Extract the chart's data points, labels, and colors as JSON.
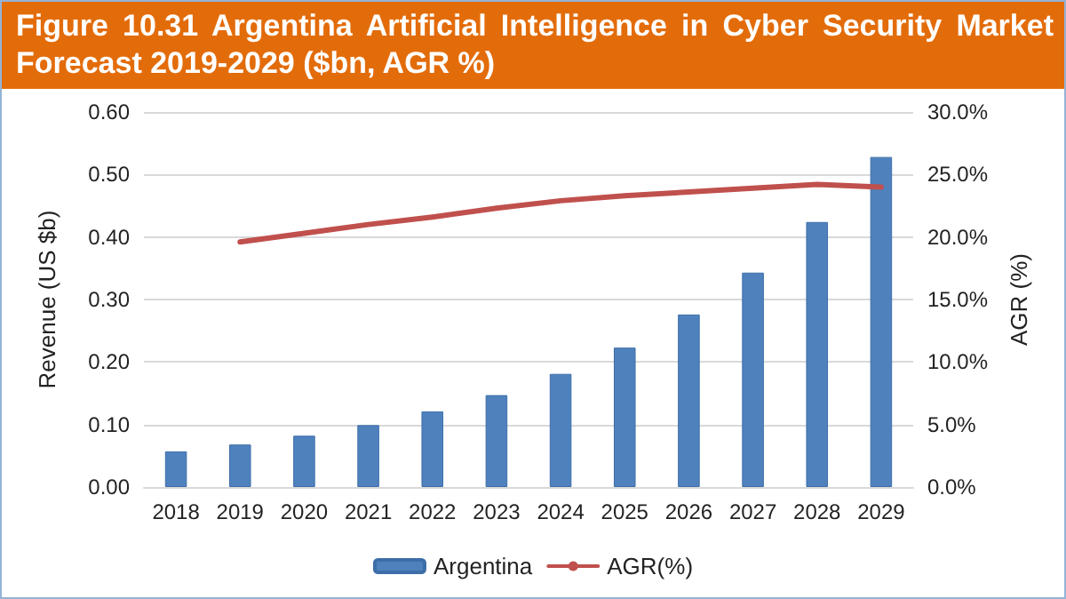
{
  "chart_data": {
    "type": "bar",
    "title": "Figure 10.31 Argentina Artificial Intelligence in Cyber Security Market Forecast 2019-2029 ($bn, AGR %)",
    "categories": [
      "2018",
      "2019",
      "2020",
      "2021",
      "2022",
      "2023",
      "2024",
      "2025",
      "2026",
      "2027",
      "2028",
      "2029"
    ],
    "series": [
      {
        "name": "Argentina",
        "color": "#4f81bd",
        "values": [
          0.057,
          0.068,
          0.082,
          0.099,
          0.121,
          0.147,
          0.181,
          0.223,
          0.276,
          0.343,
          0.424,
          0.528
        ]
      },
      {
        "name": "AGR(%)",
        "type": "line",
        "axis": "y2",
        "color": "#c0504d",
        "values": [
          null,
          19.6,
          20.3,
          21.0,
          21.6,
          22.3,
          22.9,
          23.3,
          23.6,
          23.9,
          24.2,
          24.0
        ]
      }
    ],
    "ylabel": "Revenue (US $b)",
    "y2label": "AGR (%)",
    "ylim": [
      0,
      0.6
    ],
    "yticks": [
      {
        "value": 0,
        "label": "0.00"
      },
      {
        "value": 0.1,
        "label": "0.10"
      },
      {
        "value": 0.2,
        "label": "0.20"
      },
      {
        "value": 0.3,
        "label": "0.30"
      },
      {
        "value": 0.4,
        "label": "0.40"
      },
      {
        "value": 0.5,
        "label": "0.50"
      },
      {
        "value": 0.6,
        "label": "0.60"
      }
    ],
    "y2lim": [
      0,
      30
    ],
    "y2ticks": [
      {
        "value": 0,
        "label": "0.0%"
      },
      {
        "value": 5,
        "label": "5.0%"
      },
      {
        "value": 10,
        "label": "10.0%"
      },
      {
        "value": 15,
        "label": "15.0%"
      },
      {
        "value": 20,
        "label": "20.0%"
      },
      {
        "value": 25,
        "label": "25.0%"
      },
      {
        "value": 30,
        "label": "30.0%"
      }
    ],
    "grid": "y",
    "legend": "bottom",
    "marker": "none"
  }
}
